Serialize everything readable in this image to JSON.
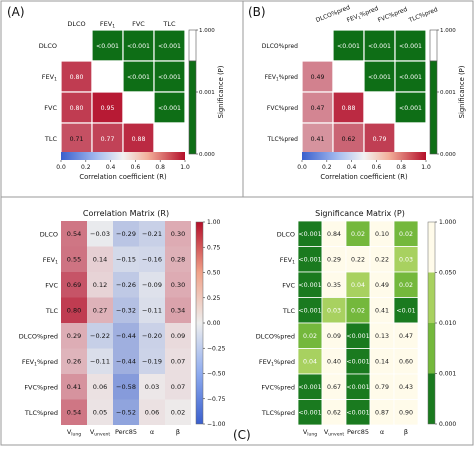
{
  "chart_data": [
    {
      "type": "heatmap",
      "panel_label": "(A)",
      "x_categories": [
        {
          "base": "DLCO"
        },
        {
          "base": "FEV",
          "sub": "1"
        },
        {
          "base": "FVC"
        },
        {
          "base": "TLC"
        }
      ],
      "y_categories": [
        {
          "base": "DLCO"
        },
        {
          "base": "FEV",
          "sub": "1"
        },
        {
          "base": "FVC"
        },
        {
          "base": "TLC"
        }
      ],
      "lower_values": [
        [
          null,
          null,
          null,
          null
        ],
        [
          0.8,
          null,
          null,
          null
        ],
        [
          0.8,
          0.95,
          null,
          null
        ],
        [
          0.71,
          0.77,
          0.88,
          null
        ]
      ],
      "upper_labels": [
        [
          null,
          "<0.001",
          "<0.001",
          "<0.001"
        ],
        [
          null,
          null,
          "<0.001",
          "<0.001"
        ],
        [
          null,
          null,
          null,
          "<0.001"
        ],
        [
          null,
          null,
          null,
          null
        ]
      ],
      "correlation_colorbar": {
        "label": "Correlation coefficient (R)",
        "range": [
          0.0,
          1.0
        ],
        "ticks": [
          "0.0",
          "0.2",
          "0.4",
          "0.6",
          "0.8",
          "1.0"
        ]
      },
      "significance_colorbar": {
        "label": "Significance (P)",
        "ticks": [
          "1.000",
          "0.001",
          "0.000"
        ]
      }
    },
    {
      "type": "heatmap",
      "panel_label": "(B)",
      "x_categories": [
        {
          "base": "DLCO%pred"
        },
        {
          "base": "FEV",
          "sub": "1",
          "suffix": "%pred"
        },
        {
          "base": "FVC%pred"
        },
        {
          "base": "TLC%pred"
        }
      ],
      "y_categories": [
        {
          "base": "DLCO%pred"
        },
        {
          "base": "FEV",
          "sub": "1",
          "suffix": "%pred"
        },
        {
          "base": "FVC%pred"
        },
        {
          "base": "TLC%pred"
        }
      ],
      "lower_values": [
        [
          null,
          null,
          null,
          null
        ],
        [
          0.49,
          null,
          null,
          null
        ],
        [
          0.47,
          0.88,
          null,
          null
        ],
        [
          0.41,
          0.62,
          0.79,
          null
        ]
      ],
      "upper_labels": [
        [
          null,
          "<0.001",
          "<0.001",
          "<0.001"
        ],
        [
          null,
          null,
          "<0.001",
          "<0.001"
        ],
        [
          null,
          null,
          null,
          "<0.001"
        ],
        [
          null,
          null,
          null,
          null
        ]
      ],
      "correlation_colorbar": {
        "label": "Correlation coefficient (R)",
        "range": [
          0.0,
          1.0
        ],
        "ticks": [
          "0.0",
          "0.2",
          "0.4",
          "0.6",
          "0.8",
          "1.0"
        ]
      },
      "significance_colorbar": {
        "label": "Significance (P)",
        "ticks": [
          "1.000",
          "0.001",
          "0.000"
        ]
      }
    },
    {
      "type": "heatmap",
      "title": "Correlation Matrix (R)",
      "x_categories": [
        {
          "base": "V",
          "sub": "lung"
        },
        {
          "base": "V",
          "sub": "unvent"
        },
        {
          "base": "Perc85"
        },
        {
          "base": "α"
        },
        {
          "base": "β"
        }
      ],
      "y_categories": [
        {
          "base": "DLCO"
        },
        {
          "base": "FEV",
          "sub": "1"
        },
        {
          "base": "FVC"
        },
        {
          "base": "TLC"
        },
        {
          "base": "DLCO%pred"
        },
        {
          "base": "FEV",
          "sub": "1",
          "suffix": "%pred"
        },
        {
          "base": "FVC%pred"
        },
        {
          "base": "TLC%pred"
        }
      ],
      "values": [
        [
          0.54,
          -0.03,
          -0.29,
          -0.21,
          0.3
        ],
        [
          0.55,
          0.14,
          -0.15,
          -0.16,
          0.28
        ],
        [
          0.69,
          0.12,
          -0.26,
          -0.09,
          0.3
        ],
        [
          0.8,
          0.27,
          -0.32,
          -0.11,
          0.34
        ],
        [
          0.29,
          -0.22,
          -0.44,
          -0.2,
          0.09
        ],
        [
          0.26,
          -0.11,
          -0.44,
          -0.19,
          0.07
        ],
        [
          0.41,
          0.06,
          -0.58,
          0.03,
          0.07
        ],
        [
          0.54,
          0.05,
          -0.52,
          0.06,
          0.02
        ]
      ],
      "colorbar": {
        "range": [
          -1.0,
          1.0
        ],
        "ticks": [
          "1.00",
          "0.75",
          "0.50",
          "0.25",
          "0.00",
          "−0.25",
          "−0.50",
          "−0.75",
          "−1.00"
        ]
      }
    },
    {
      "type": "heatmap",
      "title": "Significance Matrix (P)",
      "x_categories": [
        {
          "base": "V",
          "sub": "lung"
        },
        {
          "base": "V",
          "sub": "unvent"
        },
        {
          "base": "Perc85"
        },
        {
          "base": "α"
        },
        {
          "base": "β"
        }
      ],
      "y_categories": [
        {
          "base": "DLCO"
        },
        {
          "base": "FEV",
          "sub": "1"
        },
        {
          "base": "FVC"
        },
        {
          "base": "TLC"
        },
        {
          "base": "DLCO%pred"
        },
        {
          "base": "FEV",
          "sub": "1",
          "suffix": "%pred"
        },
        {
          "base": "FVC%pred"
        },
        {
          "base": "TLC%pred"
        }
      ],
      "labels": [
        [
          "<0.001",
          "0.84",
          "0.02",
          "0.10",
          "0.02"
        ],
        [
          "<0.001",
          "0.29",
          "0.22",
          "0.22",
          "0.03"
        ],
        [
          "<0.001",
          "0.35",
          "0.04",
          "0.49",
          "0.02"
        ],
        [
          "<0.001",
          "0.03",
          "0.02",
          "0.41",
          "<0.01"
        ],
        [
          "0.02",
          "0.09",
          "<0.001",
          "0.13",
          "0.47"
        ],
        [
          "0.04",
          "0.40",
          "<0.001",
          "0.14",
          "0.60"
        ],
        [
          "<0.001",
          "0.67",
          "<0.001",
          "0.79",
          "0.43"
        ],
        [
          "<0.001",
          "0.62",
          "<0.001",
          "0.87",
          "0.90"
        ]
      ],
      "colorbar": {
        "ticks": [
          "1.000",
          "0.050",
          "0.010",
          "0.001",
          "0.000"
        ]
      }
    }
  ],
  "figure_label": "(C)",
  "palette": {
    "green_dark": "#1f7a1f",
    "green_mid": "#7cc24a",
    "green_light": "#c8e69a",
    "cream": "#fffbea",
    "red": "#c03238",
    "blue": "#4a6fd8",
    "neutral": "#f2f2f2"
  }
}
